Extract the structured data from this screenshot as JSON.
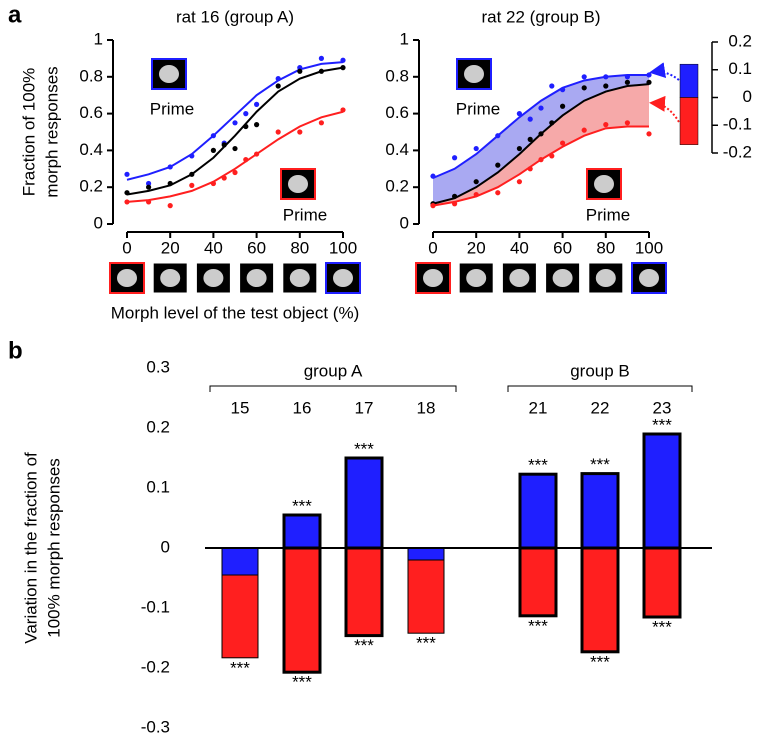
{
  "chart_data": [
    {
      "type": "line",
      "panel_label": "a",
      "title": "rat 16 (group A)",
      "ylabel": [
        "Fraction of 100%",
        "morph responses"
      ],
      "xlabel": "Morph level of the test object (%)",
      "x": [
        0,
        10,
        20,
        30,
        40,
        45,
        50,
        55,
        60,
        70,
        80,
        90,
        100
      ],
      "fit_x": [
        0,
        10,
        20,
        30,
        40,
        50,
        60,
        70,
        80,
        90,
        100
      ],
      "xlim": [
        0,
        100
      ],
      "xticks": [
        0,
        20,
        40,
        60,
        80,
        100
      ],
      "ylim": [
        0,
        1
      ],
      "yticks": [
        0,
        0.2,
        0.4,
        0.6,
        0.8,
        1
      ],
      "shaded": false,
      "series": [
        {
          "color": "#1f1fff",
          "values": [
            0.27,
            0.22,
            0.31,
            0.37,
            0.48,
            0.44,
            0.55,
            0.6,
            0.65,
            0.79,
            0.85,
            0.9,
            0.89
          ],
          "fit": [
            0.24,
            0.27,
            0.31,
            0.38,
            0.48,
            0.59,
            0.7,
            0.78,
            0.84,
            0.87,
            0.88
          ]
        },
        {
          "color": "#000000",
          "values": [
            0.17,
            0.2,
            0.22,
            0.27,
            0.4,
            0.43,
            0.41,
            0.53,
            0.54,
            0.75,
            0.83,
            0.83,
            0.85
          ],
          "fit": [
            0.16,
            0.18,
            0.21,
            0.27,
            0.36,
            0.48,
            0.61,
            0.72,
            0.79,
            0.83,
            0.85
          ]
        },
        {
          "color": "#ff1f1f",
          "values": [
            0.12,
            0.12,
            0.1,
            0.21,
            0.22,
            0.25,
            0.28,
            0.35,
            0.38,
            0.5,
            0.5,
            0.55,
            0.62
          ],
          "fit": [
            0.12,
            0.13,
            0.15,
            0.18,
            0.23,
            0.3,
            0.38,
            0.46,
            0.53,
            0.58,
            0.61
          ]
        }
      ],
      "annotations": [
        {
          "text": "Prime",
          "color": "#1f1fff"
        },
        {
          "text": "Prime",
          "color": "#ff1f1f"
        }
      ]
    },
    {
      "type": "line",
      "title": "rat 22 (group B)",
      "x": [
        0,
        10,
        20,
        30,
        40,
        45,
        50,
        55,
        60,
        70,
        80,
        90,
        100
      ],
      "fit_x": [
        0,
        10,
        20,
        30,
        40,
        50,
        60,
        70,
        80,
        90,
        100
      ],
      "xlim": [
        0,
        100
      ],
      "xticks": [
        0,
        20,
        40,
        60,
        80,
        100
      ],
      "ylim": [
        0,
        1
      ],
      "yticks": [
        0,
        0.2,
        0.4,
        0.6,
        0.8,
        1
      ],
      "shaded": true,
      "shade_colors": [
        "#a9a9f2",
        "#f6a9a9"
      ],
      "series": [
        {
          "color": "#1f1fff",
          "values": [
            0.26,
            0.36,
            0.41,
            0.48,
            0.6,
            0.57,
            0.63,
            0.75,
            0.73,
            0.8,
            0.8,
            0.8,
            0.81
          ],
          "fit": [
            0.25,
            0.3,
            0.38,
            0.48,
            0.58,
            0.67,
            0.74,
            0.78,
            0.8,
            0.81,
            0.81
          ]
        },
        {
          "color": "#000000",
          "values": [
            0.11,
            0.15,
            0.23,
            0.32,
            0.41,
            0.46,
            0.49,
            0.55,
            0.64,
            0.74,
            0.75,
            0.77,
            0.77
          ],
          "fit": [
            0.11,
            0.14,
            0.2,
            0.28,
            0.38,
            0.49,
            0.59,
            0.67,
            0.72,
            0.75,
            0.76
          ]
        },
        {
          "color": "#ff1f1f",
          "values": [
            0.1,
            0.11,
            0.16,
            0.17,
            0.23,
            0.3,
            0.35,
            0.37,
            0.44,
            0.51,
            0.54,
            0.55,
            0.49
          ],
          "fit": [
            0.1,
            0.12,
            0.15,
            0.2,
            0.27,
            0.35,
            0.42,
            0.48,
            0.52,
            0.53,
            0.53
          ]
        }
      ],
      "annotations": [
        {
          "text": "Prime",
          "color": "#1f1fff"
        },
        {
          "text": "Prime",
          "color": "#ff1f1f"
        }
      ]
    },
    {
      "type": "colorbar",
      "ylim": [
        -0.2,
        0.2
      ],
      "yticks": [
        -0.2,
        -0.1,
        0,
        0.1,
        0.2
      ],
      "series": [
        {
          "color": "#1f1fff",
          "values": [
            0.12
          ]
        },
        {
          "color": "#ff1f1f",
          "values": [
            -0.17
          ]
        }
      ]
    },
    {
      "type": "bar",
      "panel_label": "b",
      "ylabel": [
        "Variation in the fraction of",
        "100% morph responses"
      ],
      "ylim": [
        -0.3,
        0.3
      ],
      "yticks": [
        -0.3,
        -0.2,
        -0.1,
        0,
        0.1,
        0.2,
        0.3
      ],
      "groups": [
        {
          "label": "group A",
          "categories": [
            "15",
            "16",
            "17",
            "18"
          ]
        },
        {
          "label": "group B",
          "categories": [
            "21",
            "22",
            "23"
          ]
        }
      ],
      "outlined": [
        false,
        true,
        true,
        false,
        true,
        true,
        true
      ],
      "series": [
        {
          "color": "#ff1f1f",
          "values": [
            -0.183,
            -0.207,
            -0.146,
            -0.142,
            -0.113,
            -0.173,
            -0.115
          ],
          "stars": [
            "***",
            "***",
            "***",
            "***",
            "***",
            "***",
            "***"
          ]
        },
        {
          "color": "#1f1fff",
          "values": [
            -0.045,
            0.055,
            0.15,
            -0.02,
            0.123,
            0.124,
            0.19
          ],
          "stars": [
            null,
            "***",
            "***",
            null,
            "***",
            "***",
            "***"
          ]
        }
      ]
    }
  ]
}
